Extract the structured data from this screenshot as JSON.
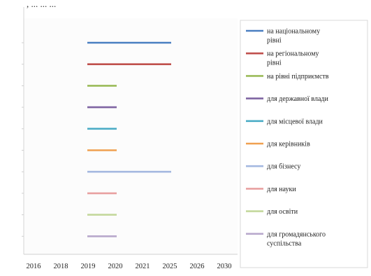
{
  "header_text": ", ... ... ...",
  "chart_data": {
    "type": "bar",
    "orientation": "horizontal-range",
    "x_tick_labels": [
      "2016",
      "2018",
      "2019",
      "2020",
      "2021",
      "2025",
      "2026",
      "2030"
    ],
    "grid": false,
    "legend_position": "right",
    "series": [
      {
        "name": "на національному рівні",
        "color": "#4a7fc1",
        "start": "2019",
        "end": "2025"
      },
      {
        "name": "на регіональному рівні",
        "color": "#c0504d",
        "start": "2019",
        "end": "2025"
      },
      {
        "name": "на рівні підприємств",
        "color": "#9bbb59",
        "start": "2019",
        "end": "2020"
      },
      {
        "name": "для державної влади",
        "color": "#7f64a2",
        "start": "2019",
        "end": "2020"
      },
      {
        "name": "для місцевої влади",
        "color": "#4bacc6",
        "start": "2019",
        "end": "2020"
      },
      {
        "name": "для керівників",
        "color": "#f0a050",
        "start": "2019",
        "end": "2020"
      },
      {
        "name": "для бізнесу",
        "color": "#a4b8e0",
        "start": "2019",
        "end": "2025"
      },
      {
        "name": "для науки",
        "color": "#e8a0a0",
        "start": "2019",
        "end": "2020"
      },
      {
        "name": "для освіти",
        "color": "#c4d89c",
        "start": "2019",
        "end": "2020"
      },
      {
        "name": "для громадянського суспільства",
        "color": "#b8a8cc",
        "start": "2019",
        "end": "2020"
      }
    ]
  },
  "legend_lines": [
    [
      "на національному",
      "рівні"
    ],
    [
      "на регіональному",
      "рівні"
    ],
    [
      "на рівні підприємств"
    ],
    [
      "для державної влади"
    ],
    [
      "для місцевої влади"
    ],
    [
      "для керівників"
    ],
    [
      "для бізнесу"
    ],
    [
      "для науки"
    ],
    [
      "для освіти"
    ],
    [
      "для громадянського",
      "суспільства"
    ]
  ]
}
